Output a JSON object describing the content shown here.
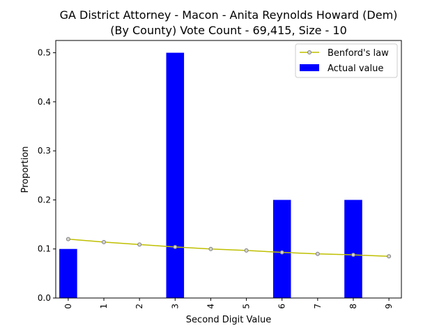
{
  "chart_data": {
    "type": "bar",
    "title_line1": "GA District Attorney - Macon - Anita Reynolds Howard (Dem)",
    "title_line2": "(By County) Vote Count - 69,415, Size - 10",
    "xlabel": "Second Digit Value",
    "ylabel": "Proportion",
    "categories": [
      "0",
      "1",
      "2",
      "3",
      "4",
      "5",
      "6",
      "7",
      "8",
      "9"
    ],
    "ylim": [
      0,
      0.525
    ],
    "yticks": [
      "0.0",
      "0.1",
      "0.2",
      "0.3",
      "0.4",
      "0.5"
    ],
    "ytick_values": [
      0.0,
      0.1,
      0.2,
      0.3,
      0.4,
      0.5
    ],
    "grid": false,
    "legend_position": "top-right",
    "series": [
      {
        "name": "Benford's law",
        "kind": "line",
        "color": "#bfbf00",
        "values": [
          0.12,
          0.114,
          0.109,
          0.104,
          0.1,
          0.097,
          0.093,
          0.09,
          0.088,
          0.085
        ]
      },
      {
        "name": "Actual value",
        "kind": "bar",
        "color": "#0000ff",
        "values": [
          0.1,
          0.0,
          0.0,
          0.5,
          0.0,
          0.0,
          0.2,
          0.0,
          0.2,
          0.0
        ]
      }
    ]
  }
}
